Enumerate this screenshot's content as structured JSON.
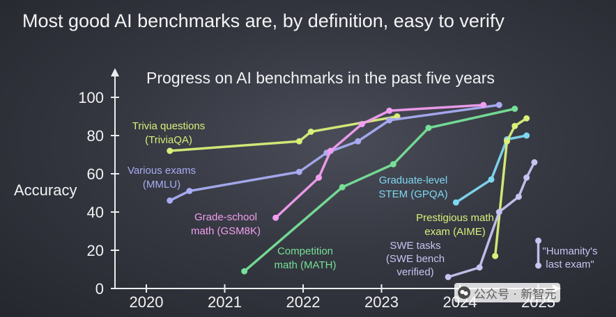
{
  "slide_title": "Most good AI benchmarks are, by definition, easy to verify",
  "watermark": "公众号 · 新智元",
  "chart_data": {
    "type": "line",
    "title": "Progress on AI benchmarks in the past five years",
    "ylabel": "Accuracy",
    "xlabel": "",
    "xlim": [
      2019.6,
      2025.2
    ],
    "ylim": [
      0,
      100
    ],
    "x_ticks": [
      2020,
      2021,
      2022,
      2023,
      2024,
      2025
    ],
    "x_tick_labels": [
      "2020",
      "2021",
      "2022",
      "2023",
      "2024",
      "2025"
    ],
    "y_ticks": [
      0,
      20,
      40,
      60,
      80,
      100
    ],
    "y_tick_labels": [
      "0",
      "20",
      "40",
      "60",
      "80",
      "100"
    ],
    "grid": false,
    "legend": "inline labels",
    "series": [
      {
        "name": "Trivia questions\n(TriviaQA)",
        "color": "#d9f079",
        "points": [
          [
            2020.3,
            72
          ],
          [
            2021.95,
            77
          ],
          [
            2022.1,
            82
          ],
          [
            2023.2,
            90
          ]
        ]
      },
      {
        "name": "Various exams\n(MMLU)",
        "color": "#a9acf2",
        "points": [
          [
            2020.3,
            46
          ],
          [
            2020.55,
            51
          ],
          [
            2021.95,
            61
          ],
          [
            2022.3,
            71
          ],
          [
            2022.7,
            77
          ],
          [
            2023.1,
            88
          ],
          [
            2024.5,
            96
          ]
        ]
      },
      {
        "name": "Grade-school\nmath (GSM8K)",
        "color": "#f29ef0",
        "points": [
          [
            2021.65,
            37
          ],
          [
            2022.2,
            58
          ],
          [
            2022.35,
            72
          ],
          [
            2022.75,
            86
          ],
          [
            2023.1,
            93
          ],
          [
            2024.3,
            96
          ]
        ]
      },
      {
        "name": "Competition\nmath (MATH)",
        "color": "#76e098",
        "points": [
          [
            2021.25,
            9
          ],
          [
            2022.5,
            53
          ],
          [
            2023.15,
            65
          ],
          [
            2023.6,
            84
          ],
          [
            2024.7,
            94
          ]
        ]
      },
      {
        "name": "Graduate-level\nSTEM (GPQA)",
        "color": "#7fd8f2",
        "points": [
          [
            2023.95,
            45
          ],
          [
            2024.4,
            57
          ],
          [
            2024.6,
            78
          ],
          [
            2024.85,
            80
          ]
        ]
      },
      {
        "name": "Prestigious math\nexam (AIME)",
        "color": "#d9f079",
        "points": [
          [
            2024.45,
            17
          ],
          [
            2024.6,
            77
          ],
          [
            2024.7,
            85
          ],
          [
            2024.85,
            89
          ]
        ]
      },
      {
        "name": "SWE tasks\n(SWE bench\nverified)",
        "color": "#c8c4f2",
        "points": [
          [
            2023.85,
            6
          ],
          [
            2024.25,
            11
          ],
          [
            2024.5,
            40
          ],
          [
            2024.75,
            48
          ],
          [
            2024.85,
            58
          ],
          [
            2024.95,
            66
          ]
        ]
      },
      {
        "name": "\"Humanity's\nlast exam\"",
        "color": "#c8c4f2",
        "points": [
          [
            2025.0,
            12
          ],
          [
            2025.0,
            25
          ]
        ]
      }
    ]
  }
}
